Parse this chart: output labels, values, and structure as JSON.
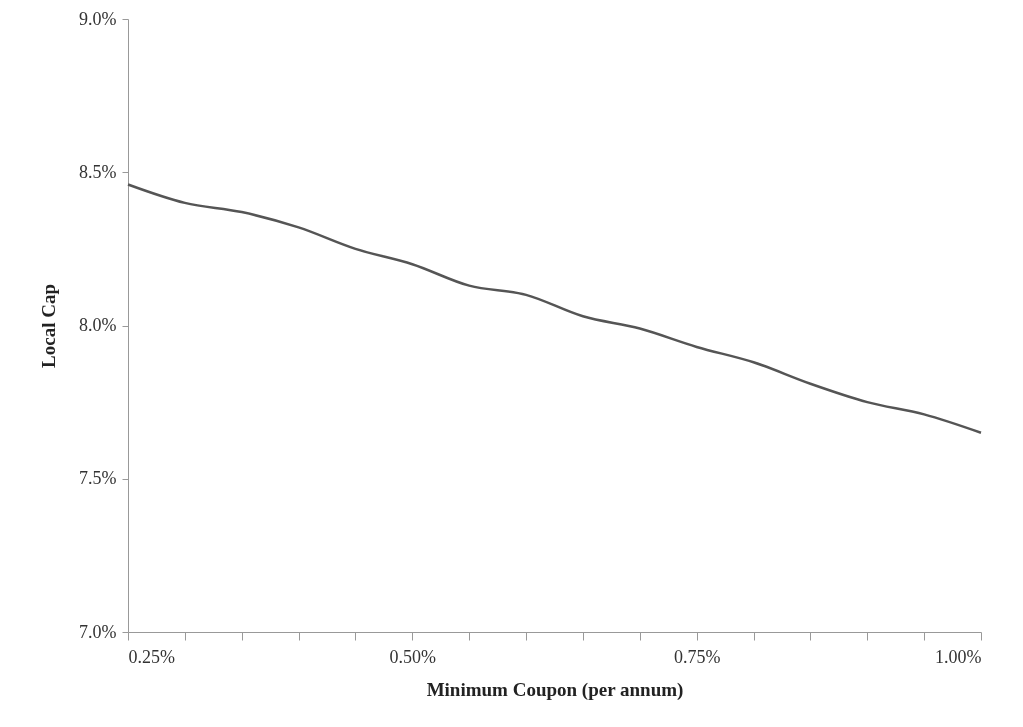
{
  "chart_data": {
    "type": "line",
    "xlabel": "Minimum Coupon (per annum)",
    "ylabel": "Local Cap",
    "x": [
      0.25,
      0.3,
      0.35,
      0.4,
      0.45,
      0.5,
      0.55,
      0.6,
      0.65,
      0.7,
      0.75,
      0.8,
      0.85,
      0.9,
      0.95,
      1.0
    ],
    "values": [
      8.46,
      8.4,
      8.37,
      8.32,
      8.25,
      8.2,
      8.13,
      8.1,
      8.03,
      7.99,
      7.93,
      7.88,
      7.81,
      7.75,
      7.71,
      7.65
    ],
    "color": "#555555",
    "line_style": "solid",
    "xlim": [
      0.25,
      1.0
    ],
    "xticks": [
      {
        "value": 0.25,
        "label": "0.25%"
      },
      {
        "value": 0.3,
        "label": null
      },
      {
        "value": 0.35,
        "label": null
      },
      {
        "value": 0.4,
        "label": null
      },
      {
        "value": 0.45,
        "label": null
      },
      {
        "value": 0.5,
        "label": "0.50%"
      },
      {
        "value": 0.55,
        "label": null
      },
      {
        "value": 0.6,
        "label": null
      },
      {
        "value": 0.65,
        "label": null
      },
      {
        "value": 0.7,
        "label": null
      },
      {
        "value": 0.75,
        "label": "0.75%"
      },
      {
        "value": 0.8,
        "label": null
      },
      {
        "value": 0.85,
        "label": null
      },
      {
        "value": 0.9,
        "label": null
      },
      {
        "value": 0.95,
        "label": null
      },
      {
        "value": 1.0,
        "label": "1.00%"
      }
    ],
    "ylim": [
      7.0,
      9.0
    ],
    "yticks": [
      {
        "value": 7.0,
        "label": "7.0%"
      },
      {
        "value": 7.5,
        "label": "7.5%"
      },
      {
        "value": 8.0,
        "label": "8.0%"
      },
      {
        "value": 8.5,
        "label": "8.5%"
      },
      {
        "value": 9.0,
        "label": "9.0%"
      }
    ]
  }
}
